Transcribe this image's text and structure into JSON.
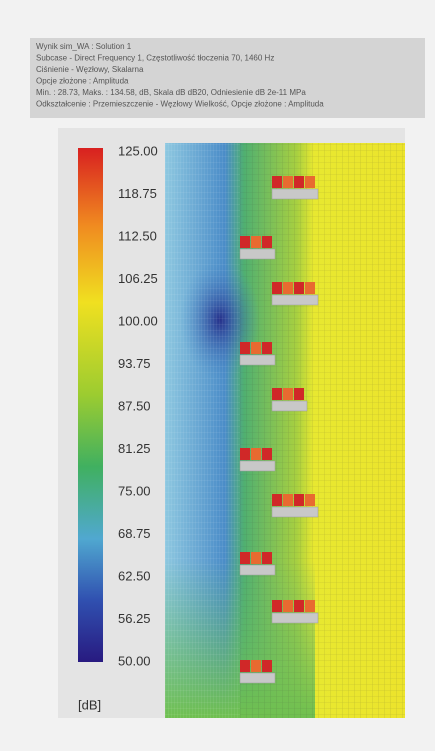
{
  "header": {
    "lines": [
      "Wynik sim_WA : Solution 1",
      "Subcase - Direct Frequency 1, Częstotliwość tłoczenia 70, 1460 Hz",
      "Ciśnienie - Węzłowy, Skalarna",
      "Opcje złożone : Amplituda",
      "Min. : 28.73, Maks. : 134.58, dB, Skala dB dB20, Odniesienie dB 2e-11 MPa",
      "Odkształcenie : Przemieszczenie - Węzłowy Wielkość, Opcje złożone : Amplituda"
    ]
  },
  "legend": {
    "labels": [
      "125.00",
      "118.75",
      "112.50",
      "106.25",
      "100.00",
      "93.75",
      "87.50",
      "81.25",
      "75.00",
      "68.75",
      "62.50",
      "56.25",
      "50.00"
    ],
    "unit": "[dB]"
  }
}
